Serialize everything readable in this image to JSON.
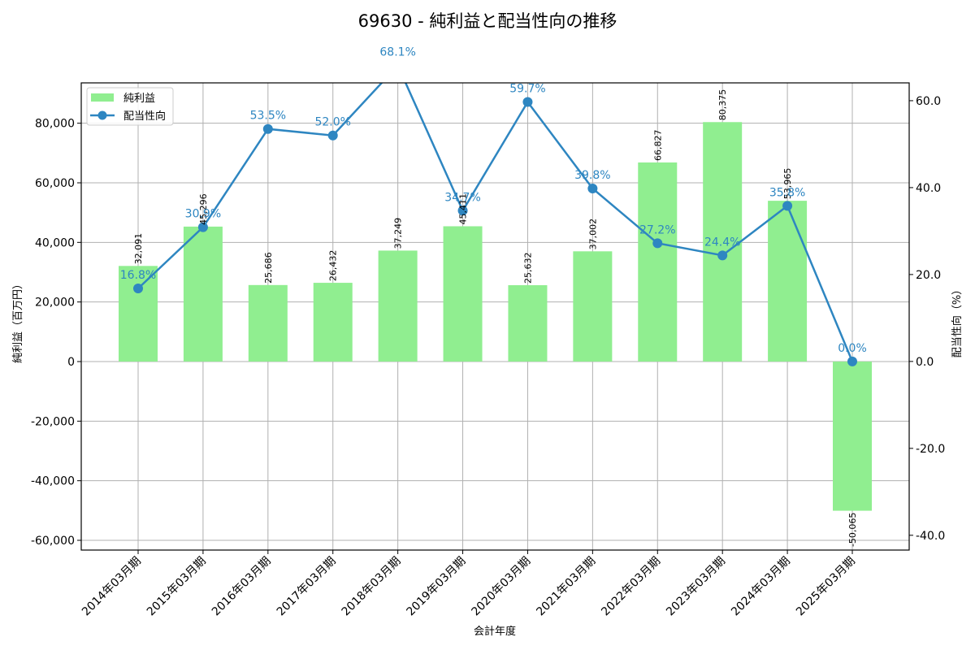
{
  "title": "69630 - 純利益と配当性向の推移",
  "chart_data": {
    "type": "bar+line",
    "title": "69630 - 純利益と配当性向の推移",
    "xlabel": "会計年度",
    "ylabel_left": "純利益（百万円）",
    "ylabel_right": "配当性向（%）",
    "categories": [
      "2014年03月期",
      "2015年03月期",
      "2016年03月期",
      "2017年03月期",
      "2018年03月期",
      "2019年03月期",
      "2020年03月期",
      "2021年03月期",
      "2022年03月期",
      "2023年03月期",
      "2024年03月期",
      "2025年03月期"
    ],
    "series": [
      {
        "name": "純利益",
        "type": "bar",
        "axis": "left",
        "color": "#90ee90",
        "values": [
          32091,
          45296,
          25686,
          26432,
          37249,
          45411,
          25632,
          37002,
          66827,
          80375,
          53965,
          -50065
        ],
        "labels": [
          "32,091",
          "45,296",
          "25,686",
          "26,432",
          "37,249",
          "45,411",
          "25,632",
          "37,002",
          "66,827",
          "80,375",
          "53,965",
          "-50,065"
        ]
      },
      {
        "name": "配当性向",
        "type": "line",
        "axis": "right",
        "color": "#2e86c1",
        "values": [
          16.8,
          30.9,
          53.5,
          52.0,
          68.1,
          34.7,
          59.7,
          39.8,
          27.2,
          24.4,
          35.8,
          0.0
        ],
        "labels": [
          "16.8%",
          "30.9%",
          "53.5%",
          "52.0%",
          "68.1%",
          "34.7%",
          "59.7%",
          "39.8%",
          "27.2%",
          "24.4%",
          "35.8%",
          "0.0%"
        ]
      }
    ],
    "ylim_left": [
      -63270,
      93540
    ],
    "ylim_right": [
      -43.4,
      64.1
    ],
    "yticks_left": [
      -60000,
      -40000,
      -20000,
      0,
      20000,
      40000,
      60000,
      80000
    ],
    "yticks_left_labels": [
      "-60,000",
      "-40,000",
      "-20,000",
      "0",
      "20,000",
      "40,000",
      "60,000",
      "80,000"
    ],
    "yticks_right": [
      -40,
      -20,
      0,
      20,
      40,
      60
    ],
    "yticks_right_labels": [
      "-40.0",
      "-20.0",
      "0.0",
      "20.0",
      "40.0",
      "60.0"
    ],
    "grid": true,
    "legend": {
      "position": "upper left",
      "entries": [
        "純利益",
        "配当性向"
      ]
    }
  }
}
